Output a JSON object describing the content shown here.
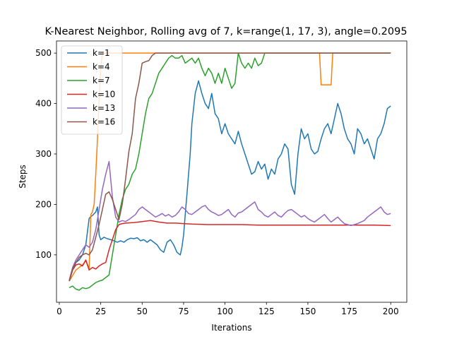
{
  "chart_data": {
    "type": "line",
    "title": "K-Nearest Neighbor, Rolling avg of 7, k=range(1, 17, 3), angle=0.2095",
    "xlabel": "Iterations",
    "ylabel": "Steps",
    "xlim": [
      -1.7,
      209.7
    ],
    "ylim": [
      6,
      524
    ],
    "xticks": [
      0,
      25,
      50,
      75,
      100,
      125,
      150,
      175,
      200
    ],
    "yticks": [
      100,
      200,
      300,
      400,
      500
    ],
    "grid": false,
    "legend_position": "top-left",
    "series": [
      {
        "name": "k=1",
        "color": "#1f77b4",
        "x": [
          6,
          8,
          10,
          12,
          14,
          16,
          18,
          19,
          20,
          22,
          23,
          24,
          25,
          27,
          29,
          31,
          33,
          35,
          37,
          39,
          41,
          43,
          45,
          47,
          49,
          51,
          53,
          55,
          57,
          59,
          61,
          63,
          65,
          67,
          69,
          71,
          73,
          74,
          75,
          76,
          77,
          78,
          79,
          80,
          82,
          84,
          86,
          88,
          90,
          92,
          94,
          96,
          98,
          100,
          102,
          104,
          106,
          108,
          110,
          112,
          114,
          116,
          118,
          120,
          122,
          124,
          126,
          128,
          130,
          132,
          134,
          136,
          138,
          140,
          142,
          144,
          146,
          148,
          150,
          152,
          154,
          156,
          158,
          160,
          162,
          164,
          166,
          168,
          170,
          172,
          174,
          176,
          178,
          180,
          182,
          184,
          186,
          188,
          190,
          192,
          194,
          196,
          198,
          200
        ],
        "y": [
          48,
          70,
          85,
          90,
          100,
          120,
          172,
          176,
          178,
          185,
          195,
          140,
          130,
          135,
          132,
          130,
          128,
          125,
          128,
          125,
          130,
          133,
          132,
          134,
          128,
          130,
          125,
          130,
          125,
          120,
          110,
          105,
          125,
          130,
          120,
          105,
          100,
          115,
          140,
          180,
          220,
          260,
          300,
          360,
          420,
          445,
          420,
          400,
          390,
          420,
          380,
          370,
          340,
          360,
          340,
          330,
          320,
          345,
          320,
          300,
          280,
          260,
          265,
          285,
          270,
          280,
          250,
          270,
          260,
          290,
          300,
          320,
          310,
          240,
          220,
          300,
          350,
          330,
          340,
          310,
          300,
          305,
          330,
          350,
          360,
          340,
          370,
          400,
          380,
          350,
          330,
          320,
          300,
          350,
          340,
          320,
          330,
          310,
          290,
          330,
          340,
          360,
          390,
          395
        ]
      },
      {
        "name": "k=4",
        "color": "#ff7f0e",
        "x": [
          6,
          10,
          14,
          16,
          18,
          19,
          20,
          21,
          22,
          23,
          24,
          25,
          26,
          27,
          28,
          29,
          30,
          35,
          40,
          45,
          50,
          60,
          80,
          100,
          120,
          140,
          150,
          157,
          158,
          160,
          162,
          164,
          165,
          166,
          170,
          180,
          190,
          200
        ],
        "y": [
          48,
          70,
          80,
          88,
          72,
          180,
          185,
          200,
          260,
          330,
          410,
          470,
          500,
          500,
          500,
          500,
          500,
          500,
          500,
          500,
          500,
          500,
          500,
          500,
          500,
          500,
          500,
          500,
          437,
          437,
          437,
          437,
          500,
          500,
          500,
          500,
          500,
          500
        ]
      },
      {
        "name": "k=7",
        "color": "#2ca02c",
        "x": [
          6,
          8,
          10,
          12,
          14,
          16,
          18,
          20,
          22,
          24,
          26,
          28,
          30,
          32,
          34,
          36,
          38,
          40,
          42,
          44,
          46,
          48,
          50,
          52,
          54,
          56,
          58,
          60,
          62,
          64,
          66,
          68,
          70,
          72,
          74,
          76,
          78,
          80,
          82,
          84,
          86,
          88,
          90,
          92,
          94,
          96,
          98,
          100,
          102,
          104,
          106,
          108,
          110,
          112,
          114,
          116,
          118,
          120,
          122,
          124,
          126,
          128,
          130,
          140,
          150,
          160,
          170,
          180,
          190,
          200
        ],
        "y": [
          35,
          38,
          32,
          30,
          35,
          33,
          35,
          40,
          45,
          48,
          50,
          55,
          60,
          100,
          140,
          180,
          210,
          230,
          240,
          260,
          270,
          300,
          340,
          380,
          410,
          420,
          440,
          460,
          470,
          480,
          490,
          495,
          490,
          490,
          495,
          480,
          485,
          490,
          480,
          490,
          470,
          455,
          470,
          460,
          440,
          460,
          440,
          470,
          450,
          430,
          440,
          500,
          480,
          470,
          480,
          470,
          490,
          475,
          480,
          500,
          500,
          500,
          500,
          500,
          500,
          500,
          500,
          500,
          500,
          500
        ]
      },
      {
        "name": "k=10",
        "color": "#d62728",
        "x": [
          6,
          8,
          10,
          12,
          14,
          16,
          18,
          20,
          22,
          24,
          26,
          28,
          30,
          32,
          34,
          36,
          38,
          40,
          45,
          50,
          55,
          60,
          65,
          70,
          75,
          80,
          90,
          100,
          110,
          120,
          130,
          140,
          150,
          160,
          170,
          180,
          190,
          200
        ],
        "y": [
          48,
          70,
          80,
          82,
          78,
          90,
          70,
          75,
          72,
          78,
          82,
          85,
          110,
          130,
          150,
          160,
          162,
          163,
          164,
          166,
          168,
          165,
          163,
          163,
          162,
          161,
          160,
          160,
          160,
          159,
          159,
          159,
          159,
          159,
          159,
          159,
          159,
          158
        ]
      },
      {
        "name": "k=13",
        "color": "#9467bd",
        "x": [
          6,
          8,
          10,
          12,
          14,
          16,
          18,
          20,
          22,
          24,
          26,
          28,
          30,
          32,
          34,
          36,
          38,
          40,
          42,
          44,
          46,
          48,
          50,
          52,
          54,
          56,
          58,
          60,
          62,
          64,
          66,
          68,
          70,
          72,
          74,
          76,
          78,
          80,
          82,
          84,
          86,
          88,
          90,
          92,
          94,
          96,
          98,
          100,
          102,
          104,
          106,
          108,
          110,
          112,
          114,
          116,
          118,
          120,
          122,
          124,
          126,
          128,
          130,
          132,
          134,
          136,
          138,
          140,
          142,
          144,
          146,
          148,
          150,
          152,
          154,
          156,
          158,
          160,
          162,
          164,
          166,
          168,
          170,
          172,
          174,
          176,
          178,
          180,
          182,
          184,
          186,
          188,
          190,
          192,
          194,
          196,
          198,
          200
        ],
        "y": [
          50,
          75,
          90,
          100,
          110,
          120,
          115,
          125,
          150,
          190,
          230,
          260,
          285,
          215,
          175,
          165,
          168,
          166,
          170,
          175,
          180,
          190,
          195,
          190,
          185,
          180,
          175,
          178,
          182,
          177,
          180,
          175,
          178,
          185,
          195,
          190,
          182,
          180,
          185,
          190,
          195,
          198,
          190,
          185,
          182,
          178,
          180,
          185,
          190,
          180,
          175,
          183,
          185,
          190,
          195,
          200,
          205,
          190,
          185,
          178,
          175,
          180,
          185,
          178,
          175,
          182,
          188,
          190,
          185,
          180,
          175,
          178,
          172,
          168,
          165,
          170,
          175,
          180,
          172,
          165,
          170,
          175,
          168,
          162,
          160,
          158,
          160,
          162,
          165,
          168,
          175,
          180,
          185,
          190,
          195,
          185,
          180,
          182
        ]
      },
      {
        "name": "k=16",
        "color": "#8c564b",
        "x": [
          6,
          8,
          10,
          12,
          14,
          16,
          18,
          20,
          22,
          24,
          26,
          28,
          30,
          32,
          34,
          36,
          38,
          40,
          42,
          44,
          46,
          48,
          50,
          52,
          54,
          56,
          58,
          60,
          70,
          80,
          100,
          120,
          140,
          160,
          180,
          200
        ],
        "y": [
          48,
          72,
          85,
          95,
          100,
          103,
          100,
          110,
          135,
          160,
          190,
          220,
          225,
          210,
          190,
          170,
          200,
          250,
          305,
          340,
          410,
          440,
          480,
          483,
          485,
          495,
          500,
          500,
          500,
          500,
          500,
          500,
          500,
          500,
          500,
          500
        ]
      }
    ]
  }
}
